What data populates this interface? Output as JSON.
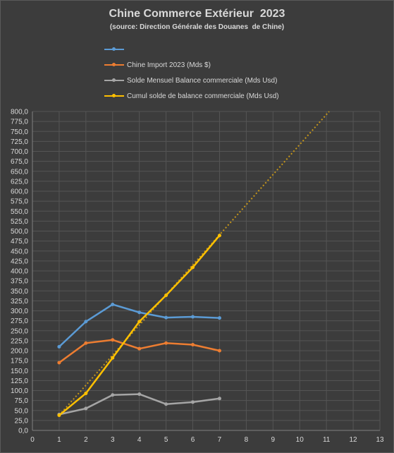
{
  "chart_data": {
    "type": "line",
    "title": "Chine Commerce Extérieur  2023",
    "subtitle": "(source: Direction Générale des Douanes  de Chine)",
    "xlim": [
      0,
      13
    ],
    "ylim": [
      0,
      800
    ],
    "x_ticks": [
      "0",
      "1",
      "2",
      "3",
      "4",
      "5",
      "6",
      "7",
      "8",
      "9",
      "10",
      "11",
      "12",
      "13"
    ],
    "y_tick_step": 25,
    "y_tick_decimals": 1,
    "grid": true,
    "legend_position": "top",
    "series": [
      {
        "name": "",
        "color": "#5b9bd5",
        "x": [
          1,
          2,
          3,
          4,
          5,
          6,
          7
        ],
        "y": [
          210,
          273,
          316,
          296,
          283,
          285,
          282
        ]
      },
      {
        "name": "Chine Import 2023 (Mds $)",
        "color": "#ed7d31",
        "x": [
          1,
          2,
          3,
          4,
          5,
          6,
          7
        ],
        "y": [
          170,
          219,
          227,
          205,
          219,
          215,
          200
        ]
      },
      {
        "name": "Solde Mensuel Balance commerciale (Mds Usd)",
        "color": "#a5a5a5",
        "x": [
          1,
          2,
          3,
          4,
          5,
          6,
          7
        ],
        "y": [
          40,
          55,
          89,
          91,
          66,
          71,
          80
        ]
      },
      {
        "name": "Cumul solde de balance commerciale (Mds Usd)",
        "color": "#ffc000",
        "x": [
          1,
          2,
          3,
          4,
          5,
          6,
          7
        ],
        "y": [
          38,
          93,
          182,
          273,
          339,
          409,
          489
        ]
      }
    ],
    "trendline": {
      "series": "Cumul solde de balance commerciale (Mds Usd)",
      "color": "#c5961a",
      "style": "dotted",
      "x": [
        1,
        11.1
      ],
      "y": [
        38,
        800
      ]
    }
  }
}
